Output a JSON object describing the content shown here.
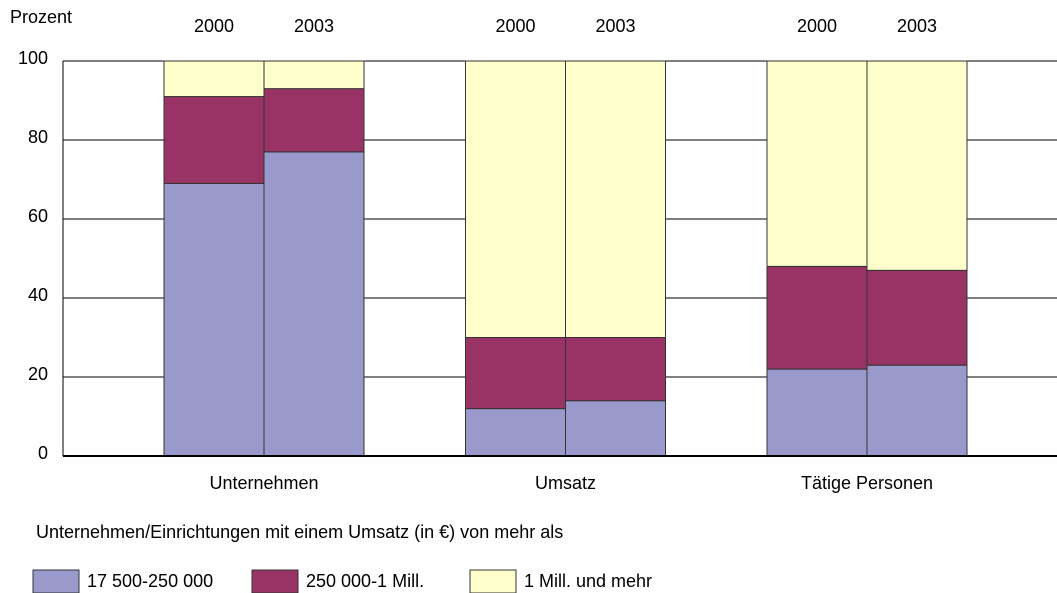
{
  "chart_data": {
    "type": "stacked_bar",
    "ylabel": "Prozent",
    "groups": [
      "Unternehmen",
      "Umsatz",
      "Tätige Personen"
    ],
    "categories": [
      "2000",
      "2003",
      "2000",
      "2003",
      "2000",
      "2003"
    ],
    "series": [
      {
        "name": "17 500-250 000",
        "color": "#9999cc",
        "values": [
          69,
          77,
          12,
          14,
          22,
          23
        ]
      },
      {
        "name": "250 000-1 Mill.",
        "color": "#993366",
        "values": [
          22,
          16,
          18,
          16,
          26,
          24
        ]
      },
      {
        "name": "1 Mill. und mehr",
        "color": "#ffffcc",
        "values": [
          9,
          7,
          70,
          70,
          52,
          53
        ]
      }
    ],
    "legend_title": "Unternehmen/Einrichtungen mit einem Umsatz (in €) von mehr als",
    "ylim": [
      0,
      100
    ],
    "yticks": [
      0,
      20,
      40,
      60,
      80,
      100
    ],
    "grid": true,
    "legend": "bottom"
  }
}
